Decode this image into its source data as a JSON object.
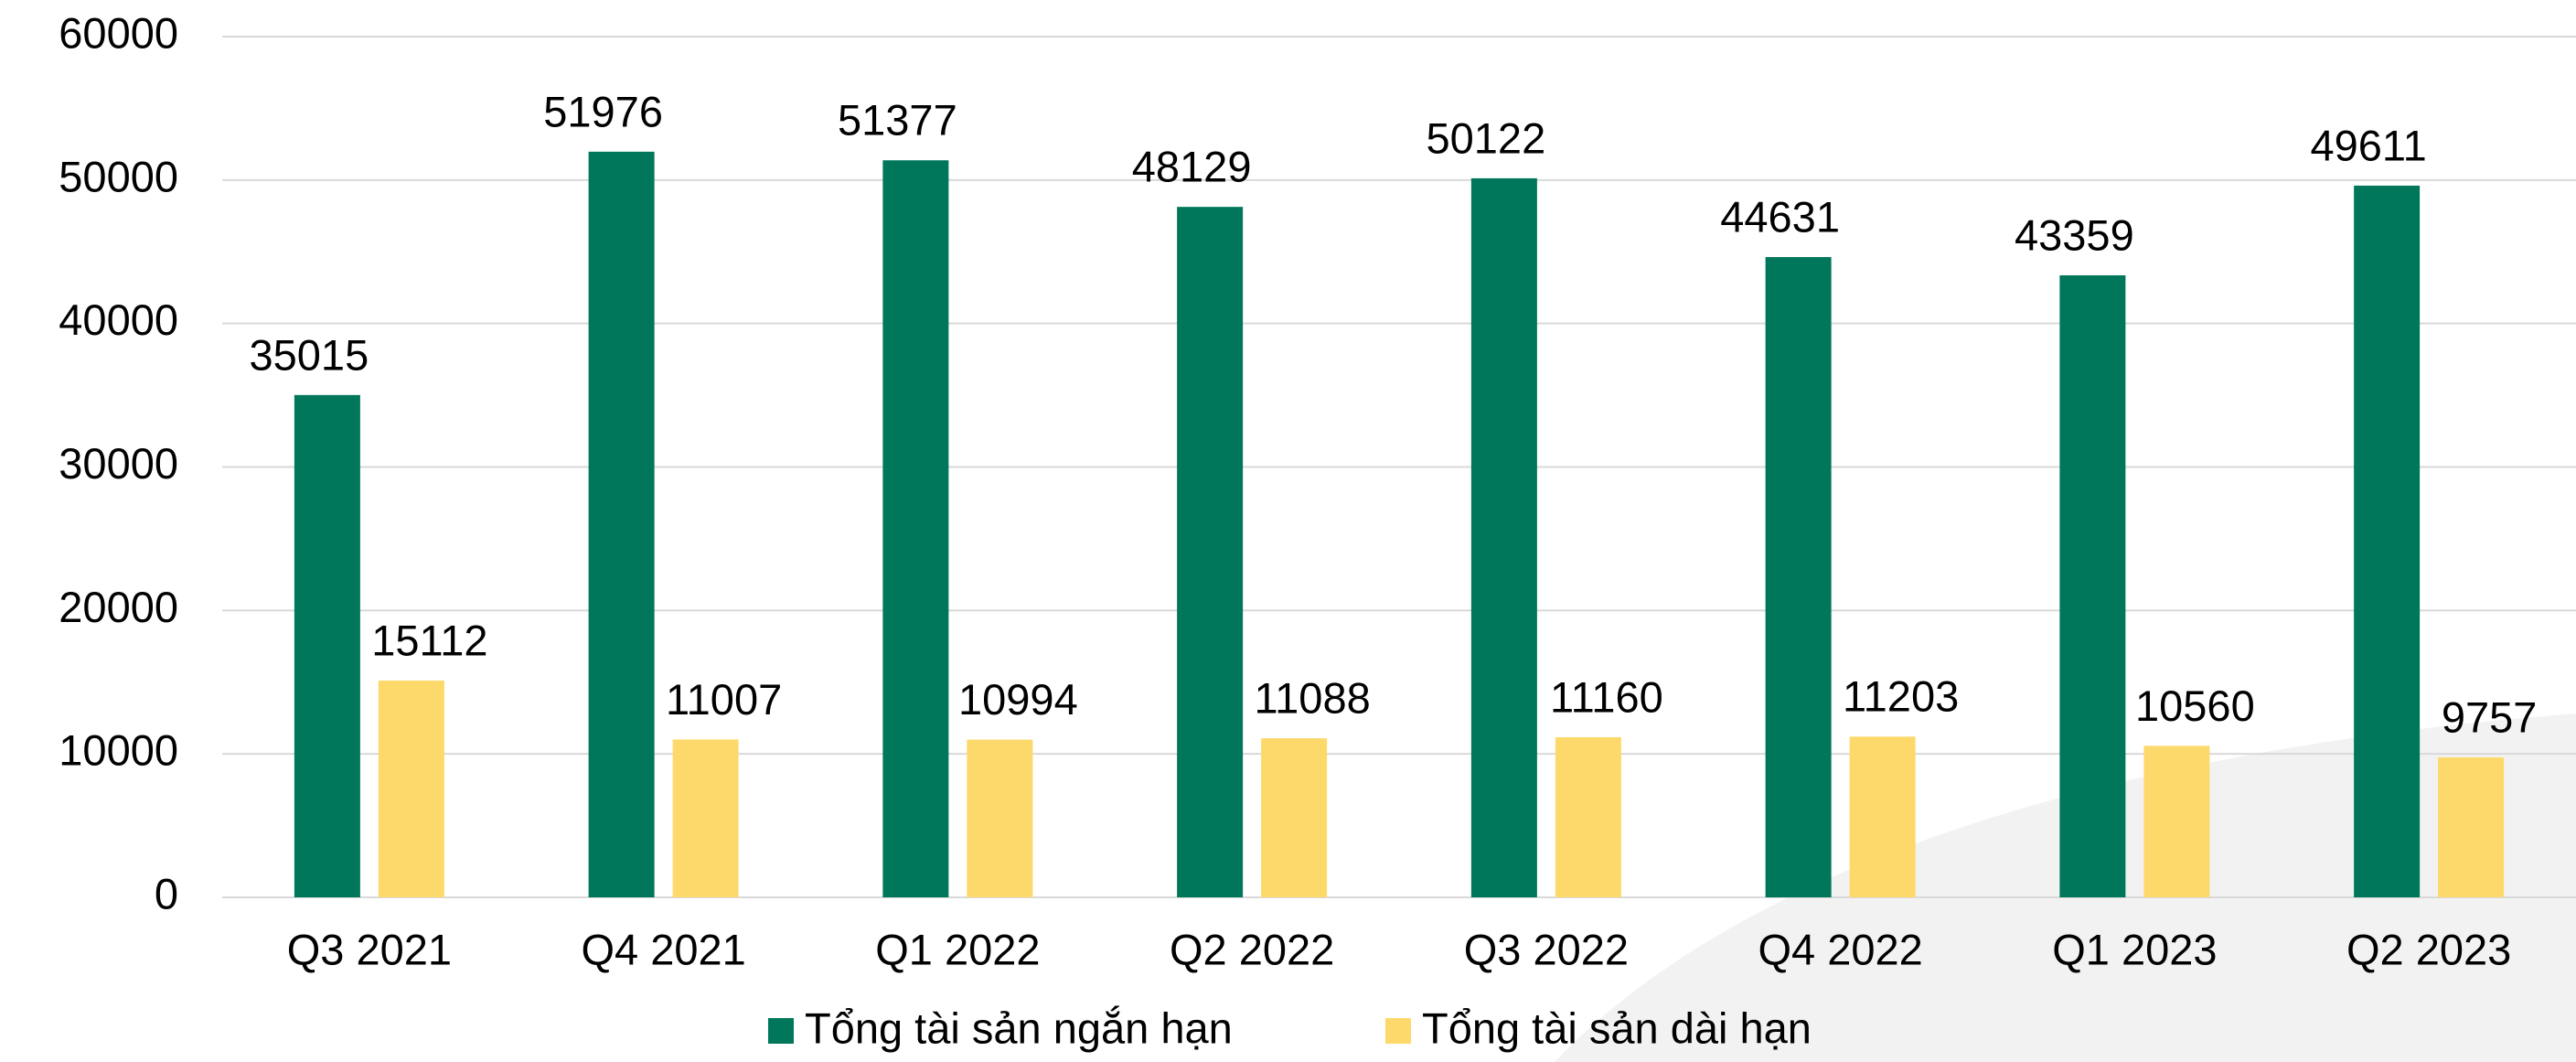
{
  "chart_data": {
    "type": "bar",
    "categories": [
      "Q3 2021",
      "Q4 2021",
      "Q1 2022",
      "Q2 2022",
      "Q3 2022",
      "Q4 2022",
      "Q1 2023",
      "Q2 2023"
    ],
    "series": [
      {
        "name": "Tổng tài sản ngắn hạn",
        "color": "#00775a",
        "values": [
          35015,
          51976,
          51377,
          48129,
          50122,
          44631,
          43359,
          49611
        ]
      },
      {
        "name": "Tổng tài sản dài hạn",
        "color": "#fdd96b",
        "values": [
          15112,
          11007,
          10994,
          11088,
          11160,
          11203,
          10560,
          9757
        ]
      }
    ],
    "ylim": [
      0,
      60000
    ],
    "yticks": [
      0,
      10000,
      20000,
      30000,
      40000,
      50000,
      60000
    ],
    "grid": true,
    "legend": "bottom"
  }
}
